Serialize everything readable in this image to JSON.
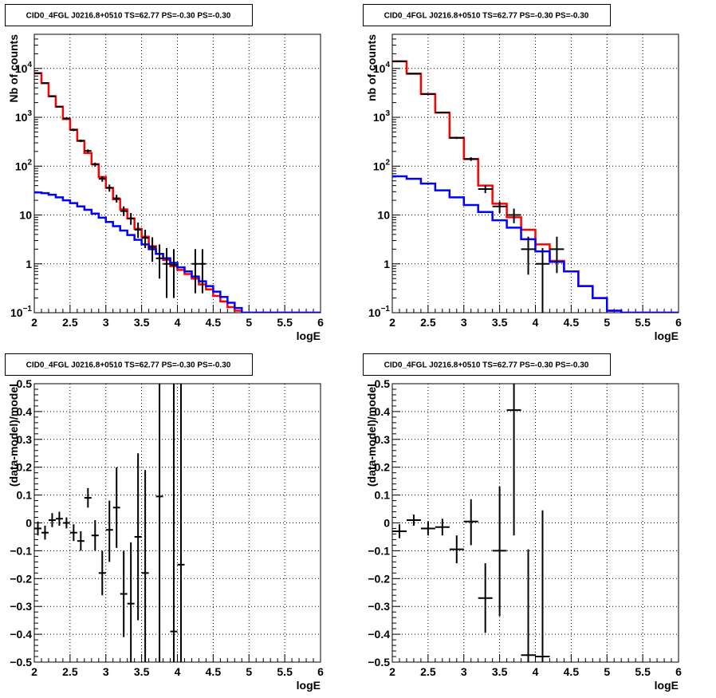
{
  "chart_data": [
    {
      "type": "line",
      "title": "CID0_4FGL J0216.8+0510 TS=62.77 PS=-0.30 PS=-0.30",
      "xlabel": "logE",
      "ylabel": "Nb of counts",
      "xlim": [
        2,
        6
      ],
      "ylim": [
        0.1,
        50000
      ],
      "yscale": "log",
      "grid": true,
      "x_ticks": [
        "2",
        "2.5",
        "3",
        "3.5",
        "4",
        "4.5",
        "5",
        "5.5",
        "6"
      ],
      "y_ticks": [
        {
          "value": 0.1,
          "label": "10",
          "exponent": "−1"
        },
        {
          "value": 1,
          "label": "1"
        },
        {
          "value": 10,
          "label": "10"
        },
        {
          "value": 100,
          "label": "10",
          "exponent": "2"
        },
        {
          "value": 1000,
          "label": "10",
          "exponent": "3"
        },
        {
          "value": 10000,
          "label": "10",
          "exponent": "4"
        }
      ],
      "bin_edges": [
        2.0,
        2.1,
        2.2,
        2.3,
        2.4,
        2.5,
        2.6,
        2.7,
        2.8,
        2.9,
        3.0,
        3.1,
        3.2,
        3.3,
        3.4,
        3.5,
        3.6,
        3.7,
        3.8,
        3.9,
        4.0,
        4.1,
        4.2,
        4.3,
        4.4,
        4.5,
        4.6,
        4.7,
        4.8,
        4.9,
        5.0,
        5.1,
        5.2,
        5.3,
        5.4,
        5.5,
        5.6,
        5.7,
        5.8,
        5.9,
        6.0
      ],
      "series": [
        {
          "kind": "histogram",
          "color": "#ff0000",
          "values": [
            8000,
            5000,
            2700,
            1650,
            920,
            560,
            330,
            185,
            110,
            60,
            36,
            21,
            13,
            8.5,
            5.2,
            3.6,
            2.3,
            1.6,
            1.2,
            0.9,
            0.75,
            0.62,
            0.5,
            0.38,
            0.3,
            0.22,
            0.17,
            0.13,
            0.11,
            0.1,
            0.1,
            0.1,
            0.1,
            0.1,
            0.1,
            0.1,
            0.1,
            0.1,
            0.1,
            0.1
          ]
        },
        {
          "kind": "histogram",
          "color": "#0000ff",
          "values": [
            29,
            28,
            26,
            23,
            20,
            17.5,
            15,
            12.8,
            10.7,
            8.8,
            7.2,
            5.9,
            4.8,
            3.9,
            3.1,
            2.5,
            2.0,
            1.6,
            1.3,
            1.05,
            0.85,
            0.7,
            0.55,
            0.44,
            0.35,
            0.27,
            0.21,
            0.16,
            0.125,
            0.1,
            0.1,
            0.1,
            0.1,
            0.1,
            0.1,
            0.1,
            0.1,
            0.1,
            0.1,
            0.1
          ]
        },
        {
          "kind": "points",
          "color": "#000000",
          "x": [
            2.05,
            2.15,
            2.25,
            2.35,
            2.45,
            2.55,
            2.65,
            2.75,
            2.85,
            2.95,
            3.05,
            3.15,
            3.25,
            3.35,
            3.45,
            3.55,
            3.65,
            3.75,
            3.85,
            3.95,
            4.25,
            4.35
          ],
          "xerr": 0.05,
          "y": [
            8000,
            5000,
            2700,
            1650,
            950,
            550,
            330,
            205,
            108,
            55,
            36,
            22,
            12,
            8.5,
            5,
            3.4,
            2.2,
            1.3,
            1,
            0.95,
            1,
            1
          ],
          "ylo": [
            7800,
            4850,
            2600,
            1600,
            900,
            520,
            310,
            190,
            97,
            48,
            30,
            18,
            9.5,
            6.3,
            3.4,
            2.1,
            1.1,
            0.5,
            0.2,
            0.2,
            0.25,
            0.25
          ],
          "yhi": [
            8200,
            5150,
            2800,
            1700,
            1000,
            580,
            350,
            220,
            118,
            62,
            42,
            26,
            15,
            11,
            7,
            5,
            3.5,
            2.5,
            2.1,
            2.0,
            2.0,
            2.0
          ]
        }
      ]
    },
    {
      "type": "line",
      "title": "CID0_4FGL J0216.8+0510 TS=62.77 PS=-0.30 PS=-0.30",
      "xlabel": "logE",
      "ylabel": "nb of counts",
      "xlim": [
        2,
        6
      ],
      "ylim": [
        0.1,
        50000
      ],
      "yscale": "log",
      "grid": true,
      "x_ticks": [
        "2",
        "2.5",
        "3",
        "3.5",
        "4",
        "4.5",
        "5",
        "5.5",
        "6"
      ],
      "y_ticks": [
        {
          "value": 0.1,
          "label": "10",
          "exponent": "−1"
        },
        {
          "value": 1,
          "label": "1"
        },
        {
          "value": 10,
          "label": "10"
        },
        {
          "value": 100,
          "label": "10",
          "exponent": "2"
        },
        {
          "value": 1000,
          "label": "10",
          "exponent": "3"
        },
        {
          "value": 10000,
          "label": "10",
          "exponent": "4"
        }
      ],
      "bin_edges": [
        2.0,
        2.2,
        2.4,
        2.6,
        2.8,
        3.0,
        3.2,
        3.4,
        3.6,
        3.8,
        4.0,
        4.2,
        4.4,
        4.6,
        4.8,
        5.0,
        5.2,
        5.4,
        5.6,
        5.8,
        6.0
      ],
      "series": [
        {
          "kind": "histogram",
          "color": "#ff0000",
          "values": [
            14000,
            7800,
            3000,
            1250,
            380,
            140,
            40,
            17,
            9,
            5,
            2.5,
            1.15,
            0.7,
            0.35,
            0.2,
            0.11,
            0.1,
            0.1,
            0.1,
            0.1
          ]
        },
        {
          "kind": "histogram",
          "color": "#0000ff",
          "values": [
            62,
            55,
            44,
            32,
            23,
            16,
            11.5,
            7.8,
            5.5,
            3.2,
            1.8,
            1.1,
            0.7,
            0.35,
            0.2,
            0.11,
            0.1,
            0.1,
            0.1,
            0.1
          ]
        },
        {
          "kind": "points",
          "color": "#000000",
          "x": [
            2.1,
            2.3,
            2.5,
            2.7,
            2.9,
            3.1,
            3.3,
            3.5,
            3.7,
            3.9,
            4.1,
            4.3
          ],
          "xerr": 0.1,
          "y": [
            14000,
            7800,
            3000,
            1250,
            380,
            140,
            34,
            15,
            10,
            2,
            1,
            2
          ],
          "ylo": [
            13800,
            7700,
            2950,
            1220,
            360,
            128,
            28,
            11,
            6.8,
            0.6,
            0.1,
            0.65
          ],
          "yhi": [
            14200,
            7900,
            3050,
            1280,
            400,
            152,
            40,
            19,
            13.5,
            3.6,
            2.1,
            3.6
          ]
        }
      ]
    },
    {
      "type": "scatter",
      "title": "CID0_4FGL J0216.8+0510 TS=62.77 PS=-0.30 PS=-0.30",
      "xlabel": "logE",
      "ylabel": "(data-model)/model",
      "xlim": [
        2,
        6
      ],
      "ylim": [
        -0.5,
        0.5
      ],
      "yscale": "linear",
      "grid": true,
      "x_ticks": [
        "2",
        "2.5",
        "3",
        "3.5",
        "4",
        "4.5",
        "5",
        "5.5",
        "6"
      ],
      "y_ticks": [
        {
          "value": -0.5,
          "label": "−0.5"
        },
        {
          "value": -0.4,
          "label": "−0.4"
        },
        {
          "value": -0.3,
          "label": "−0.3"
        },
        {
          "value": -0.2,
          "label": "−0.2"
        },
        {
          "value": -0.1,
          "label": "−0.1"
        },
        {
          "value": 0,
          "label": "0"
        },
        {
          "value": 0.1,
          "label": "0.1"
        },
        {
          "value": 0.2,
          "label": "0.2"
        },
        {
          "value": 0.3,
          "label": "0.3"
        },
        {
          "value": 0.4,
          "label": "0.4"
        },
        {
          "value": 0.5,
          "label": "0.5"
        }
      ],
      "series": [
        {
          "kind": "points",
          "color": "#000000",
          "xerr": 0.05,
          "x": [
            2.05,
            2.15,
            2.25,
            2.35,
            2.45,
            2.55,
            2.65,
            2.75,
            2.85,
            2.95,
            3.05,
            3.15,
            3.25,
            3.35,
            3.45,
            3.55,
            3.75,
            3.95,
            4.05
          ],
          "y": [
            -0.02,
            -0.035,
            0.01,
            0.015,
            0.0,
            -0.035,
            -0.065,
            0.09,
            -0.045,
            -0.18,
            -0.025,
            0.055,
            -0.255,
            -0.29,
            -0.05,
            -0.18,
            0.095,
            -0.39,
            -0.15
          ],
          "ylo": [
            -0.045,
            -0.06,
            -0.015,
            -0.01,
            -0.02,
            -0.065,
            -0.1,
            0.055,
            -0.1,
            -0.26,
            -0.14,
            -0.09,
            -0.41,
            -0.5,
            -0.35,
            -0.5,
            -0.5,
            -0.5,
            -0.5
          ],
          "yhi": [
            0.005,
            -0.01,
            0.035,
            0.04,
            0.02,
            -0.005,
            -0.03,
            0.125,
            0.01,
            -0.1,
            0.08,
            0.2,
            -0.1,
            -0.07,
            0.25,
            0.19,
            0.5,
            0.5,
            0.5
          ]
        }
      ]
    },
    {
      "type": "scatter",
      "title": "CID0_4FGL J0216.8+0510 TS=62.77 PS=-0.30 PS=-0.30",
      "xlabel": "logE",
      "ylabel": "(data-model)/model",
      "xlim": [
        2,
        6
      ],
      "ylim": [
        -0.5,
        0.5
      ],
      "yscale": "linear",
      "grid": true,
      "x_ticks": [
        "2",
        "2.5",
        "3",
        "3.5",
        "4",
        "4.5",
        "5",
        "5.5",
        "6"
      ],
      "y_ticks": [
        {
          "value": -0.5,
          "label": "−0.5"
        },
        {
          "value": -0.4,
          "label": "−0.4"
        },
        {
          "value": -0.3,
          "label": "−0.3"
        },
        {
          "value": -0.2,
          "label": "−0.2"
        },
        {
          "value": -0.1,
          "label": "−0.1"
        },
        {
          "value": 0,
          "label": "0"
        },
        {
          "value": 0.1,
          "label": "0.1"
        },
        {
          "value": 0.2,
          "label": "0.2"
        },
        {
          "value": 0.3,
          "label": "0.3"
        },
        {
          "value": 0.4,
          "label": "0.4"
        },
        {
          "value": 0.5,
          "label": "0.5"
        }
      ],
      "series": [
        {
          "kind": "points",
          "color": "#000000",
          "xerr": 0.1,
          "x": [
            2.1,
            2.3,
            2.5,
            2.7,
            2.9,
            3.1,
            3.3,
            3.5,
            3.7,
            3.9,
            4.1
          ],
          "y": [
            -0.03,
            0.01,
            -0.02,
            -0.015,
            -0.095,
            0.005,
            -0.27,
            -0.1,
            0.405,
            -0.475,
            -0.48
          ],
          "ylo": [
            -0.055,
            -0.01,
            -0.045,
            -0.045,
            -0.145,
            -0.08,
            -0.395,
            -0.335,
            -0.045,
            -0.5,
            -0.5
          ],
          "yhi": [
            -0.005,
            0.03,
            0.005,
            0.015,
            -0.045,
            0.085,
            -0.145,
            0.13,
            0.5,
            -0.095,
            0.045
          ]
        }
      ]
    }
  ]
}
